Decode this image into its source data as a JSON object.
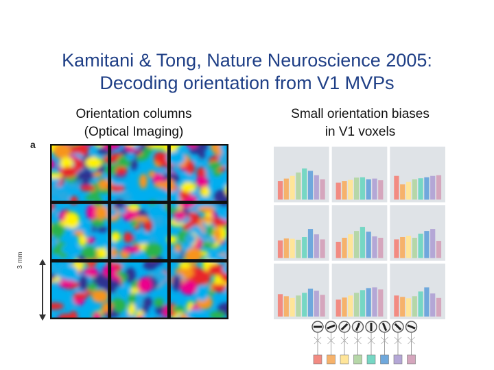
{
  "slide": {
    "title_line1": "Kamitani & Tong, Nature Neuroscience 2005:",
    "title_line2": "Decoding orientation from V1 MVPs"
  },
  "left_panel": {
    "caption_line1": "Orientation columns",
    "caption_line2": "(Optical Imaging)",
    "panel_letter": "a",
    "scale_label": "3 mm",
    "map_colors": [
      "#e8262b",
      "#f7941d",
      "#fff200",
      "#2bb34a",
      "#00aeef",
      "#2e3192",
      "#ec008c",
      "#27a9e1"
    ]
  },
  "right_panel": {
    "caption_line1": "Small orientation biases",
    "caption_line2": "in V1 voxels",
    "bar_colors": [
      "#f28b82",
      "#f6b26b",
      "#ffe599",
      "#b6d7a8",
      "#76d7c4",
      "#6fa8dc",
      "#b4a7d6",
      "#d5a6bd"
    ],
    "voxel_bias": [
      [
        0.55,
        0.62,
        0.7,
        0.8,
        0.92,
        0.85,
        0.72,
        0.6
      ],
      [
        0.5,
        0.55,
        0.58,
        0.65,
        0.66,
        0.6,
        0.62,
        0.57
      ],
      [
        0.7,
        0.45,
        0.52,
        0.6,
        0.63,
        0.66,
        0.7,
        0.72
      ],
      [
        0.52,
        0.58,
        0.57,
        0.54,
        0.62,
        0.86,
        0.7,
        0.55
      ],
      [
        0.48,
        0.6,
        0.7,
        0.8,
        0.92,
        0.78,
        0.64,
        0.6
      ],
      [
        0.55,
        0.62,
        0.66,
        0.6,
        0.72,
        0.8,
        0.86,
        0.5
      ],
      [
        0.66,
        0.6,
        0.55,
        0.62,
        0.7,
        0.82,
        0.76,
        0.64
      ],
      [
        0.5,
        0.56,
        0.62,
        0.7,
        0.78,
        0.84,
        0.86,
        0.8
      ],
      [
        0.62,
        0.58,
        0.54,
        0.6,
        0.74,
        0.86,
        0.68,
        0.55
      ]
    ],
    "orientations_deg": [
      0,
      22.5,
      45,
      67.5,
      90,
      112.5,
      135,
      157.5
    ]
  }
}
